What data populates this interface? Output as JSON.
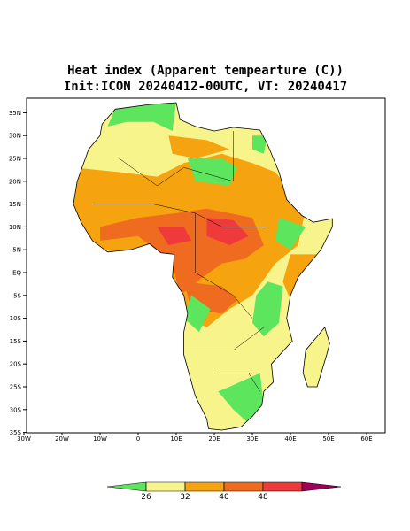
{
  "header": {
    "title": "Heat index (Apparent tempearture (C))",
    "subtitle": "Init:ICON 20240412-00UTC, VT: 20240417"
  },
  "map": {
    "lat_ticks": [
      {
        "value": 35,
        "label": "35N"
      },
      {
        "value": 30,
        "label": "30N"
      },
      {
        "value": 25,
        "label": "25N"
      },
      {
        "value": 20,
        "label": "20N"
      },
      {
        "value": 15,
        "label": "15N"
      },
      {
        "value": 10,
        "label": "10N"
      },
      {
        "value": 5,
        "label": "5N"
      },
      {
        "value": 0,
        "label": "EQ"
      },
      {
        "value": -5,
        "label": "5S"
      },
      {
        "value": -10,
        "label": "10S"
      },
      {
        "value": -15,
        "label": "15S"
      },
      {
        "value": -20,
        "label": "20S"
      },
      {
        "value": -25,
        "label": "25S"
      },
      {
        "value": -30,
        "label": "30S"
      },
      {
        "value": -35,
        "label": "35S"
      }
    ],
    "lon_ticks": [
      {
        "value": -30,
        "label": "30W"
      },
      {
        "value": -20,
        "label": "20W"
      },
      {
        "value": -10,
        "label": "10W"
      },
      {
        "value": 0,
        "label": "0"
      },
      {
        "value": 10,
        "label": "10E"
      },
      {
        "value": 20,
        "label": "20E"
      },
      {
        "value": 30,
        "label": "30E"
      },
      {
        "value": 40,
        "label": "40E"
      },
      {
        "value": 50,
        "label": "50E"
      },
      {
        "value": 60,
        "label": "60E"
      }
    ]
  },
  "colorbar": {
    "levels": [
      26,
      32,
      40,
      48
    ],
    "colors": [
      "#5de65d",
      "#f7f48c",
      "#f5a30e",
      "#ef6b1f",
      "#ee3a3a",
      "#a0005a"
    ]
  }
}
